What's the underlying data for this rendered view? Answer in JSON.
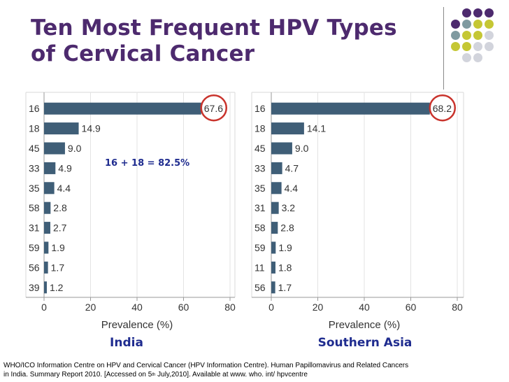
{
  "title_line1": "Ten Most Frequent HPV Types",
  "title_line2": "of Cervical Cancer",
  "note": "16 + 18 = 82.5%",
  "source": {
    "line1": "WHO/ICO Information Centre on HPV and Cervical Cancer (HPV Information Centre). Human Papillomavirus and Related Cancers",
    "line2_a": "in India. Summary Report 2010. [Accessed on 5",
    "line2_sup": "th",
    "line2_b": " July,2010]. Available at www. who. int/ hpvcentre"
  },
  "colors": {
    "bar": "#3f5e77",
    "title": "#4d2a6e",
    "highlight_circle": "#c9332c",
    "label_blue": "#1f2c8f",
    "dot_purple": "#4d2a6e",
    "dot_teal": "#7f9aa0",
    "dot_olive": "#c5c734",
    "dot_gray": "#d2d4dc"
  },
  "decor_dots": [
    "purple",
    "purple",
    "purple",
    "purple",
    "teal",
    "olive",
    "olive",
    "teal",
    "olive",
    "olive",
    "gray",
    "olive",
    "olive",
    "gray",
    "gray",
    "gray",
    "gray"
  ],
  "chart_data": [
    {
      "type": "bar",
      "orientation": "horizontal",
      "region": "India",
      "categories": [
        "16",
        "18",
        "45",
        "33",
        "35",
        "58",
        "31",
        "59",
        "56",
        "39"
      ],
      "values": [
        67.6,
        14.9,
        9.0,
        4.9,
        4.4,
        2.8,
        2.7,
        1.9,
        1.7,
        1.2
      ],
      "value_labels": [
        "67.6",
        "14.9",
        "9.0",
        "4.9",
        "4.4",
        "2.8",
        "2.7",
        "1.9",
        "1.7",
        "1.2"
      ],
      "xlabel": "Prevalence (%)",
      "xlim": [
        0,
        80
      ],
      "xticks": [
        0,
        20,
        40,
        60,
        80
      ],
      "grid": true,
      "highlight_category": "16"
    },
    {
      "type": "bar",
      "orientation": "horizontal",
      "region": "Southern Asia",
      "categories": [
        "16",
        "18",
        "45",
        "33",
        "35",
        "31",
        "58",
        "59",
        "11",
        "56"
      ],
      "values": [
        68.2,
        14.1,
        9.0,
        4.7,
        4.4,
        3.2,
        2.8,
        1.9,
        1.8,
        1.7
      ],
      "value_labels": [
        "68.2",
        "14.1",
        "9.0",
        "4.7",
        "4.4",
        "3.2",
        "2.8",
        "1.9",
        "1.8",
        "1.7"
      ],
      "xlabel": "Prevalence (%)",
      "xlim": [
        0,
        80
      ],
      "xticks": [
        0,
        20,
        40,
        60,
        80
      ],
      "grid": true,
      "highlight_category": "16"
    }
  ]
}
